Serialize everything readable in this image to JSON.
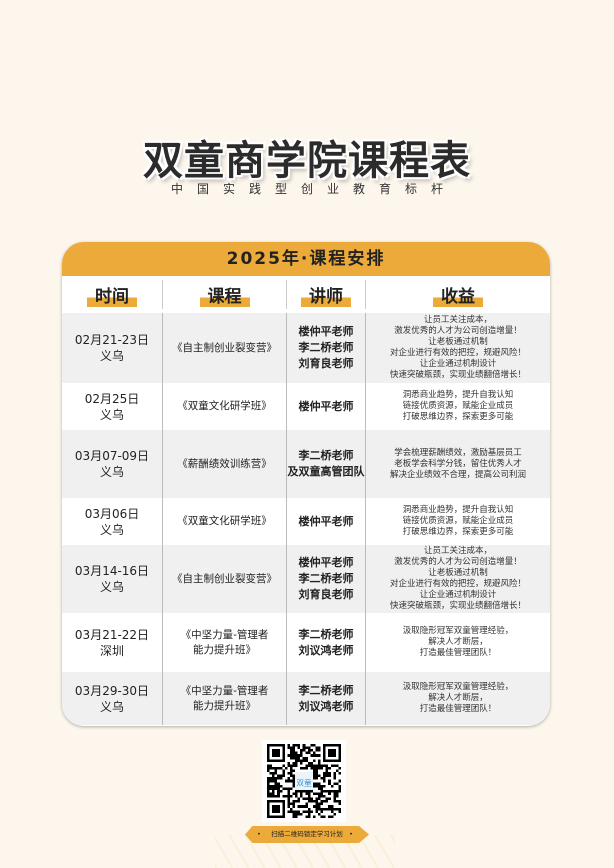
{
  "title": "双童商学院课程表",
  "subtitle": "中国实践型创业教育标杆",
  "schedule": {
    "heading": "2025年·课程安排",
    "columns": [
      "时间",
      "课程",
      "讲师",
      "收益"
    ],
    "rows": [
      {
        "date": "02月21-23日",
        "place": "义乌",
        "course": [
          "《自主制创业裂变营》"
        ],
        "teachers": [
          "楼仲平老师",
          "李二桥老师",
          "刘育良老师"
        ],
        "benefits": [
          "让员工关注成本，",
          "激发优秀的人才为公司创造增量！",
          "让老板通过机制",
          "对企业进行有效的把控，规避风险！",
          "让企业通过机制设计",
          "快速突破瓶颈，实现业绩翻倍增长！"
        ]
      },
      {
        "date": "02月25日",
        "place": "义乌",
        "course": [
          "《双童文化研学班》"
        ],
        "teachers": [
          "楼仲平老师"
        ],
        "benefits": [
          "洞悉商业趋势，提升自我认知",
          "链接优质资源，赋能企业成员",
          "打破思维边界，探索更多可能"
        ]
      },
      {
        "date": "03月07-09日",
        "place": "义乌",
        "course": [
          "《薪酬绩效训练营》"
        ],
        "teachers": [
          "李二桥老师",
          "及双童高管团队"
        ],
        "benefits": [
          "学会梳理薪酬绩效，激励基层员工",
          "老板学会科学分钱，留住优秀人才",
          "解决企业绩效不合理，提高公司利润"
        ]
      },
      {
        "date": "03月06日",
        "place": "义乌",
        "course": [
          "《双童文化研学班》"
        ],
        "teachers": [
          "楼仲平老师"
        ],
        "benefits": [
          "洞悉商业趋势，提升自我认知",
          "链接优质资源，赋能企业成员",
          "打破思维边界，探索更多可能"
        ]
      },
      {
        "date": "03月14-16日",
        "place": "义乌",
        "course": [
          "《自主制创业裂变营》"
        ],
        "teachers": [
          "楼仲平老师",
          "李二桥老师",
          "刘育良老师"
        ],
        "benefits": [
          "让员工关注成本，",
          "激发优秀的人才为公司创造增量！",
          "让老板通过机制",
          "对企业进行有效的把控，规避风险！",
          "让企业通过机制设计",
          "快速突破瓶颈，实现业绩翻倍增长！"
        ]
      },
      {
        "date": "03月21-22日",
        "place": "深圳",
        "course": [
          "《中坚力量-管理者",
          "能力提升班》"
        ],
        "teachers": [
          "李二桥老师",
          "刘议鸿老师"
        ],
        "benefits": [
          "汲取隐形冠军双童管理经验，",
          "解决人才断层，",
          "打造最佳管理团队！"
        ]
      },
      {
        "date": "03月29-30日",
        "place": "义乌",
        "course": [
          "《中坚力量-管理者",
          "能力提升班》"
        ],
        "teachers": [
          "李二桥老师",
          "刘议鸿老师"
        ],
        "benefits": [
          "汲取隐形冠军双童管理经验，",
          "解决人才断层，",
          "打造最佳管理团队！"
        ]
      }
    ]
  },
  "qr": {
    "logo_text": "双童",
    "caption": "扫描二维码锁定学习计划"
  },
  "colors": {
    "accent": "#ecaa3a",
    "background": "#fcf6ec",
    "row_alt": "#f0f0f0"
  }
}
